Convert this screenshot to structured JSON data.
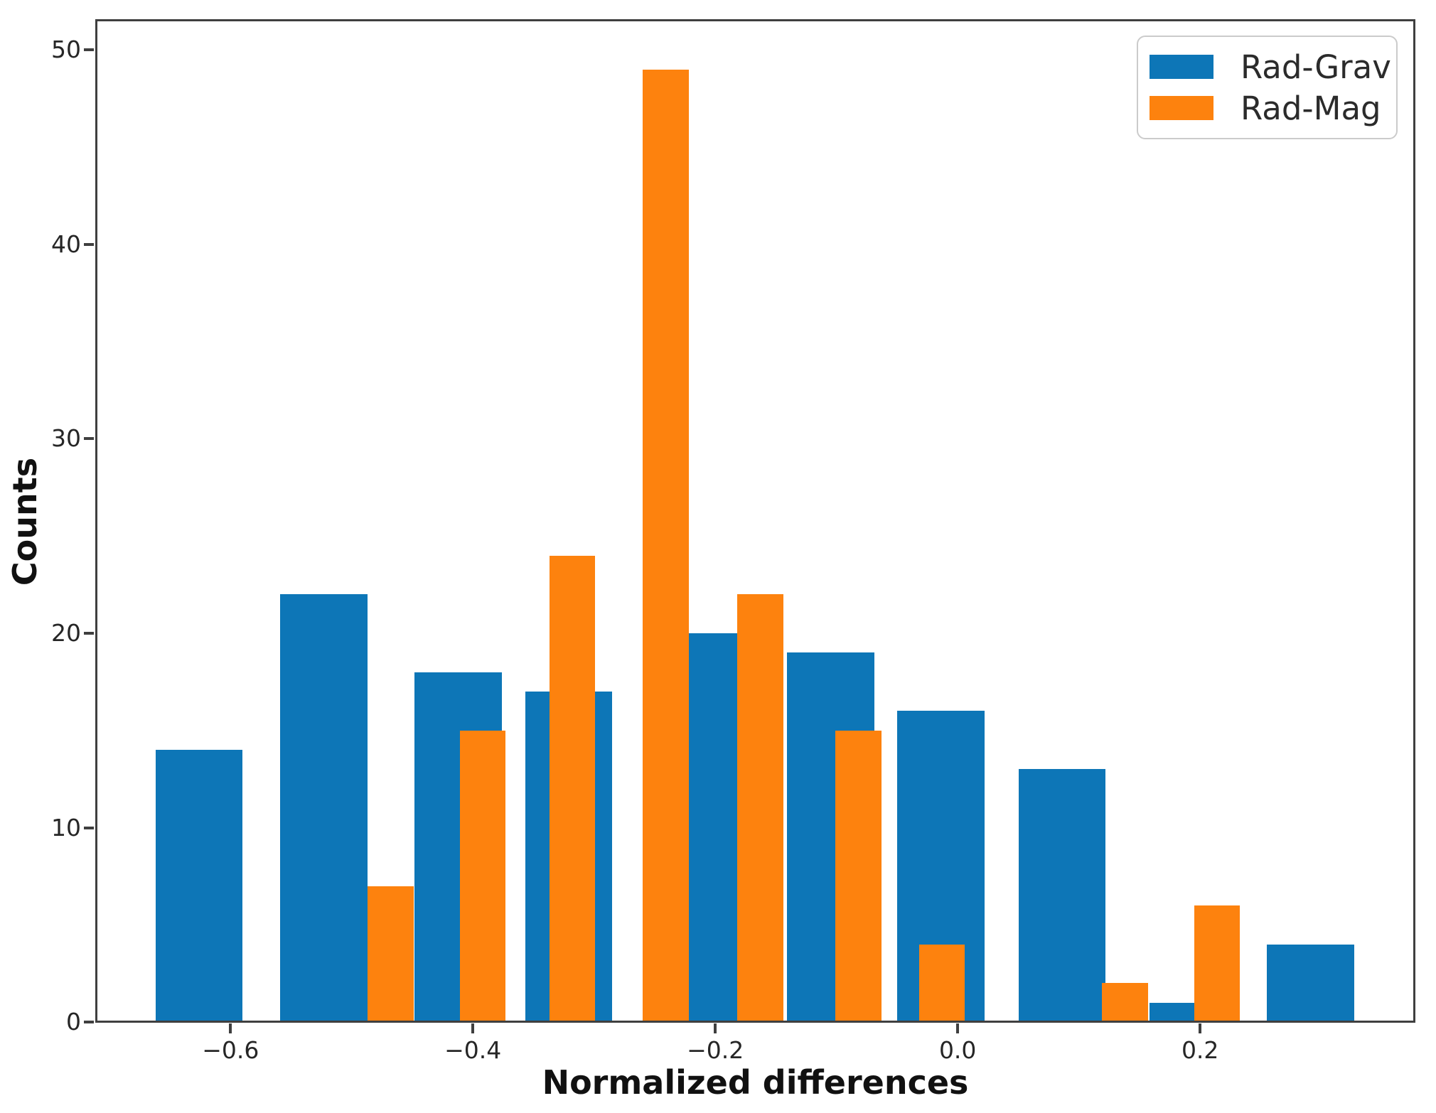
{
  "chart_data": {
    "type": "bar",
    "title": "",
    "xlabel": "Normalized differences",
    "ylabel": "Counts",
    "xlim": [
      -0.711,
      0.377
    ],
    "ylim": [
      0,
      51.55
    ],
    "grid": false,
    "legend_position": "upper right",
    "x_ticks": [
      {
        "value": -0.6,
        "label": "−0.6"
      },
      {
        "value": -0.4,
        "label": "−0.4"
      },
      {
        "value": -0.2,
        "label": "−0.2"
      },
      {
        "value": 0.0,
        "label": "0.0"
      },
      {
        "value": 0.2,
        "label": "0.2"
      }
    ],
    "y_ticks": [
      {
        "value": 0,
        "label": "0"
      },
      {
        "value": 10,
        "label": "10"
      },
      {
        "value": 20,
        "label": "20"
      },
      {
        "value": 30,
        "label": "30"
      },
      {
        "value": 40,
        "label": "40"
      },
      {
        "value": 50,
        "label": "50"
      }
    ],
    "series": [
      {
        "name": "Rad-Grav",
        "color": "#0d76b7",
        "bars": [
          {
            "x0": -0.662,
            "x1": -0.59,
            "count": 14
          },
          {
            "x0": -0.559,
            "x1": -0.487,
            "count": 22
          },
          {
            "x0": -0.448,
            "x1": -0.376,
            "count": 18
          },
          {
            "x0": -0.357,
            "x1": -0.285,
            "count": 17
          },
          {
            "x0": -0.234,
            "x1": -0.162,
            "count": 20
          },
          {
            "x0": -0.141,
            "x1": -0.069,
            "count": 19
          },
          {
            "x0": -0.05,
            "x1": 0.022,
            "count": 16
          },
          {
            "x0": 0.05,
            "x1": 0.122,
            "count": 13
          },
          {
            "x0": 0.158,
            "x1": 0.23,
            "count": 1
          },
          {
            "x0": 0.255,
            "x1": 0.327,
            "count": 4
          }
        ]
      },
      {
        "name": "Rad-Mag",
        "color": "#fd820e",
        "bars": [
          {
            "x0": -0.487,
            "x1": -0.449,
            "count": 7
          },
          {
            "x0": -0.411,
            "x1": -0.373,
            "count": 15
          },
          {
            "x0": -0.337,
            "x1": -0.299,
            "count": 24
          },
          {
            "x0": -0.26,
            "x1": -0.222,
            "count": 49
          },
          {
            "x0": -0.182,
            "x1": -0.144,
            "count": 22
          },
          {
            "x0": -0.101,
            "x1": -0.063,
            "count": 15
          },
          {
            "x0": -0.032,
            "x1": 0.006,
            "count": 4
          },
          {
            "x0": 0.119,
            "x1": 0.157,
            "count": 2
          },
          {
            "x0": 0.195,
            "x1": 0.233,
            "count": 6
          }
        ]
      }
    ]
  }
}
